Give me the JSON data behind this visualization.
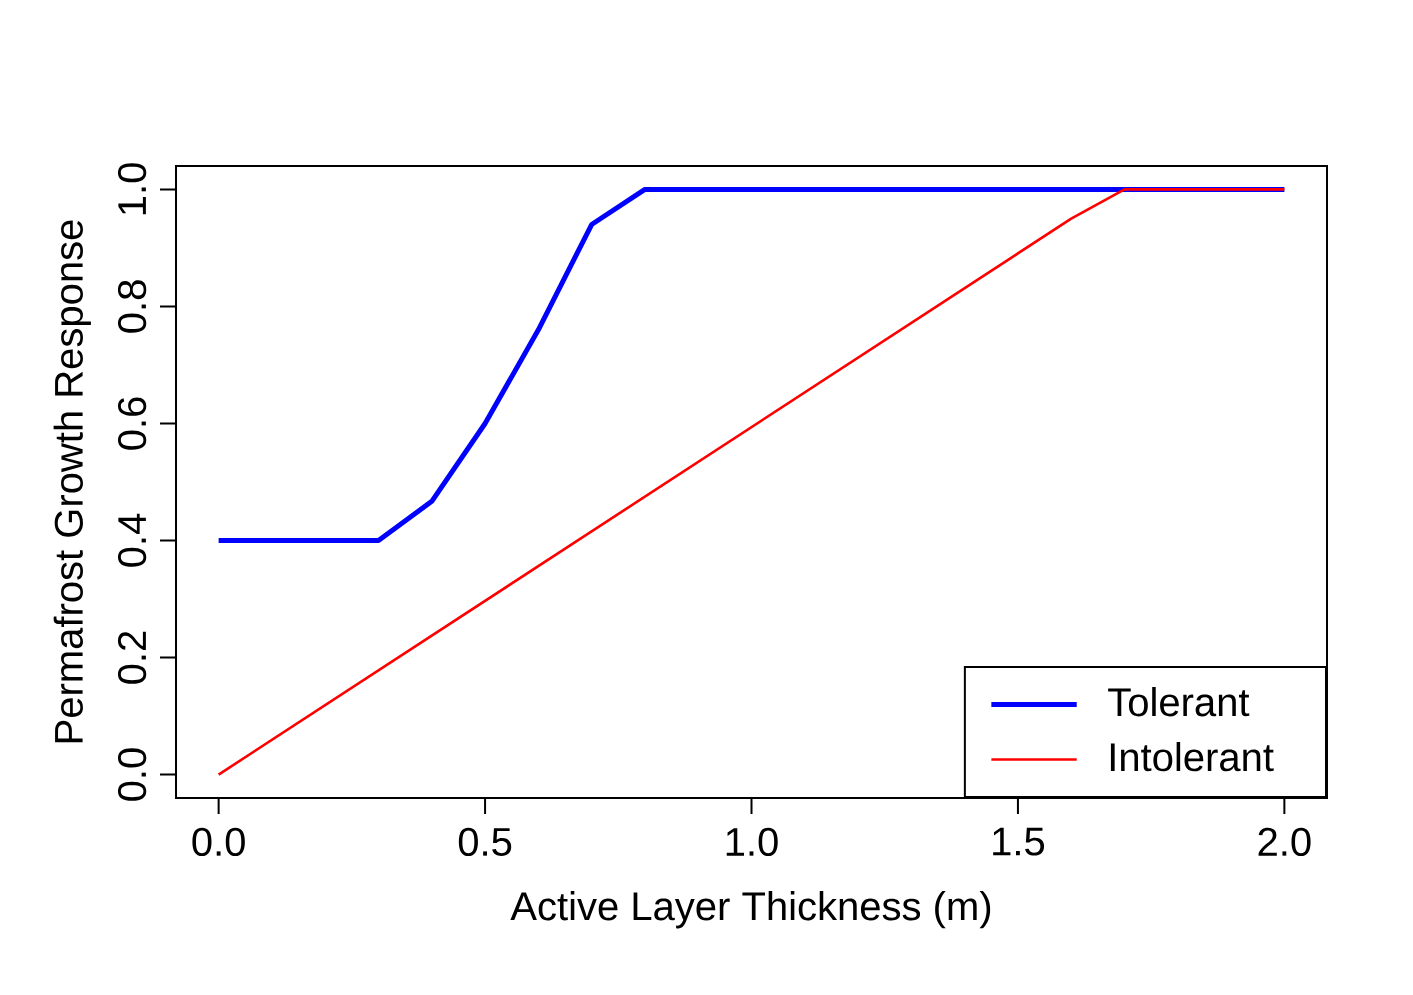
{
  "chart_data": {
    "type": "line",
    "xlabel": "Active Layer Thickness (m)",
    "ylabel": "Permafrost Growth Response",
    "xlim": [
      -0.08,
      2.08
    ],
    "ylim": [
      -0.04,
      1.04
    ],
    "xticks": [
      {
        "value": 0,
        "label": "0.0"
      },
      {
        "value": 0.5,
        "label": "0.5"
      },
      {
        "value": 1,
        "label": "1.0"
      },
      {
        "value": 1.5,
        "label": "1.5"
      },
      {
        "value": 2,
        "label": "2.0"
      }
    ],
    "yticks": [
      {
        "value": 0,
        "label": "0.0"
      },
      {
        "value": 0.2,
        "label": "0.2"
      },
      {
        "value": 0.4,
        "label": "0.4"
      },
      {
        "value": 0.6,
        "label": "0.6"
      },
      {
        "value": 0.8,
        "label": "0.8"
      },
      {
        "value": 1,
        "label": "1.0"
      }
    ],
    "series": [
      {
        "name": "Tolerant",
        "color": "#0000ff",
        "x": [
          0,
          0.3,
          0.4,
          0.5,
          0.6,
          0.7,
          0.8,
          1.7,
          2.0
        ],
        "values": [
          0.4,
          0.4,
          0.467,
          0.6,
          0.76,
          0.94,
          1.0,
          1.0,
          1.0
        ]
      },
      {
        "name": "Intolerant",
        "color": "#ff0000",
        "x": [
          0,
          1.6,
          1.7,
          2.0
        ],
        "values": [
          0,
          0.95,
          1.0,
          1.0
        ]
      }
    ],
    "legend": "bottom right",
    "grid": false,
    "marker": "none",
    "line_style": "solid"
  }
}
